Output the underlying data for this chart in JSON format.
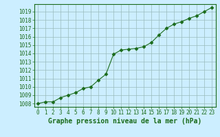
{
  "x": [
    0,
    1,
    2,
    3,
    4,
    5,
    6,
    7,
    8,
    9,
    10,
    11,
    12,
    13,
    14,
    15,
    16,
    17,
    18,
    19,
    20,
    21,
    22,
    23
  ],
  "y": [
    1008.0,
    1008.2,
    1008.2,
    1008.7,
    1009.0,
    1009.3,
    1009.8,
    1010.0,
    1010.8,
    1011.5,
    1013.9,
    1014.4,
    1014.5,
    1014.6,
    1014.8,
    1015.3,
    1016.2,
    1017.0,
    1017.5,
    1017.8,
    1018.2,
    1018.5,
    1019.0,
    1019.5
  ],
  "line_color": "#1a6b1a",
  "marker": "D",
  "marker_size": 2.5,
  "bg_color": "#cceeff",
  "grid_color": "#99bbbb",
  "xlabel": "Graphe pression niveau de la mer (hPa)",
  "xlabel_fontsize": 7,
  "xlabel_bold": true,
  "ylabel_ticks": [
    1008,
    1009,
    1010,
    1011,
    1012,
    1013,
    1014,
    1015,
    1016,
    1017,
    1018,
    1019
  ],
  "ylim": [
    1007.6,
    1019.9
  ],
  "xlim": [
    -0.5,
    23.5
  ],
  "tick_fontsize": 5.5,
  "tick_color": "#1a6b1a",
  "spine_color": "#1a6b1a"
}
